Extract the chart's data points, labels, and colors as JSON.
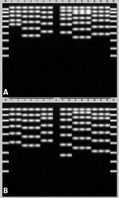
{
  "fig_width": 1.5,
  "fig_height": 2.49,
  "dpi": 100,
  "bg_color": "#c8c8c8",
  "panel_A": {
    "label": "A",
    "title_left": "O153",
    "title_right": "O145",
    "num_lanes": 18,
    "lane_labels": [
      "M",
      "1",
      "2",
      "3",
      "4",
      "5",
      "6",
      "7",
      "8",
      "9",
      "10",
      "11",
      "12",
      "13",
      "14",
      "15",
      "16",
      "M"
    ],
    "band_configs": [
      [
        0.06,
        0.1,
        0.14,
        0.19,
        0.25,
        0.32,
        0.4,
        0.48,
        0.56
      ],
      [
        0.05,
        0.09,
        0.13,
        0.18,
        0.23
      ],
      [
        0.05,
        0.09,
        0.13,
        0.18,
        0.23
      ],
      [
        0.05,
        0.09,
        0.14,
        0.2,
        0.27,
        0.35
      ],
      [
        0.05,
        0.09,
        0.14,
        0.2,
        0.27,
        0.35
      ],
      [
        0.05,
        0.09,
        0.14,
        0.2,
        0.27,
        0.35
      ],
      [
        0.05,
        0.1,
        0.15,
        0.22,
        0.3
      ],
      [
        0.05,
        0.1,
        0.15,
        0.22,
        0.3
      ],
      [],
      [
        0.05,
        0.08,
        0.12,
        0.17,
        0.23,
        0.31
      ],
      [
        0.05,
        0.08,
        0.12,
        0.17,
        0.23,
        0.31
      ],
      [
        0.05,
        0.08,
        0.11,
        0.16,
        0.21,
        0.28,
        0.36
      ],
      [
        0.05,
        0.08,
        0.11,
        0.16,
        0.21,
        0.28,
        0.36
      ],
      [
        0.05,
        0.08,
        0.11,
        0.16,
        0.21,
        0.28,
        0.36
      ],
      [
        0.05,
        0.09,
        0.13,
        0.18,
        0.25,
        0.33
      ],
      [
        0.05,
        0.09,
        0.13,
        0.18,
        0.25,
        0.33
      ],
      [
        0.05,
        0.09,
        0.13,
        0.18,
        0.25,
        0.33
      ],
      [
        0.06,
        0.1,
        0.14,
        0.19,
        0.25,
        0.32,
        0.4,
        0.48,
        0.56
      ]
    ]
  },
  "panel_B": {
    "label": "B",
    "title_left": "O153",
    "title_right": "O145",
    "num_lanes": 18,
    "lane_labels": [
      "M",
      "1",
      "2",
      "3",
      "4",
      "5",
      "6",
      "7",
      "8",
      "9",
      "10",
      "11",
      "12",
      "13",
      "14",
      "15",
      "16",
      "M"
    ],
    "band_configs": [
      [
        0.07,
        0.13,
        0.19,
        0.26,
        0.34,
        0.43,
        0.53,
        0.63,
        0.73
      ],
      [
        0.07,
        0.12,
        0.18,
        0.25,
        0.33,
        0.42
      ],
      [
        0.07,
        0.12,
        0.18,
        0.25,
        0.33,
        0.42
      ],
      [
        0.07,
        0.13,
        0.19,
        0.27,
        0.36,
        0.46
      ],
      [
        0.07,
        0.13,
        0.19,
        0.27,
        0.36,
        0.46
      ],
      [
        0.07,
        0.13,
        0.19,
        0.27,
        0.36,
        0.46
      ],
      [
        0.07,
        0.12,
        0.17,
        0.24,
        0.32,
        0.41
      ],
      [
        0.07,
        0.12,
        0.17,
        0.24,
        0.32,
        0.41
      ],
      [],
      [
        0.07,
        0.12,
        0.18,
        0.26,
        0.35,
        0.45,
        0.56
      ],
      [
        0.07,
        0.12,
        0.18,
        0.26,
        0.35,
        0.45,
        0.56
      ],
      [
        0.07,
        0.11,
        0.16,
        0.22,
        0.29,
        0.38,
        0.48
      ],
      [
        0.07,
        0.11,
        0.16,
        0.22,
        0.29,
        0.38,
        0.48
      ],
      [
        0.07,
        0.11,
        0.16,
        0.22,
        0.29,
        0.38,
        0.48
      ],
      [
        0.07,
        0.12,
        0.17,
        0.24,
        0.32,
        0.41,
        0.52
      ],
      [
        0.07,
        0.12,
        0.17,
        0.24,
        0.32,
        0.41,
        0.52
      ],
      [
        0.07,
        0.12,
        0.17,
        0.24,
        0.32,
        0.41,
        0.52
      ],
      [
        0.07,
        0.13,
        0.19,
        0.26,
        0.34,
        0.43,
        0.53,
        0.63,
        0.73
      ]
    ]
  }
}
